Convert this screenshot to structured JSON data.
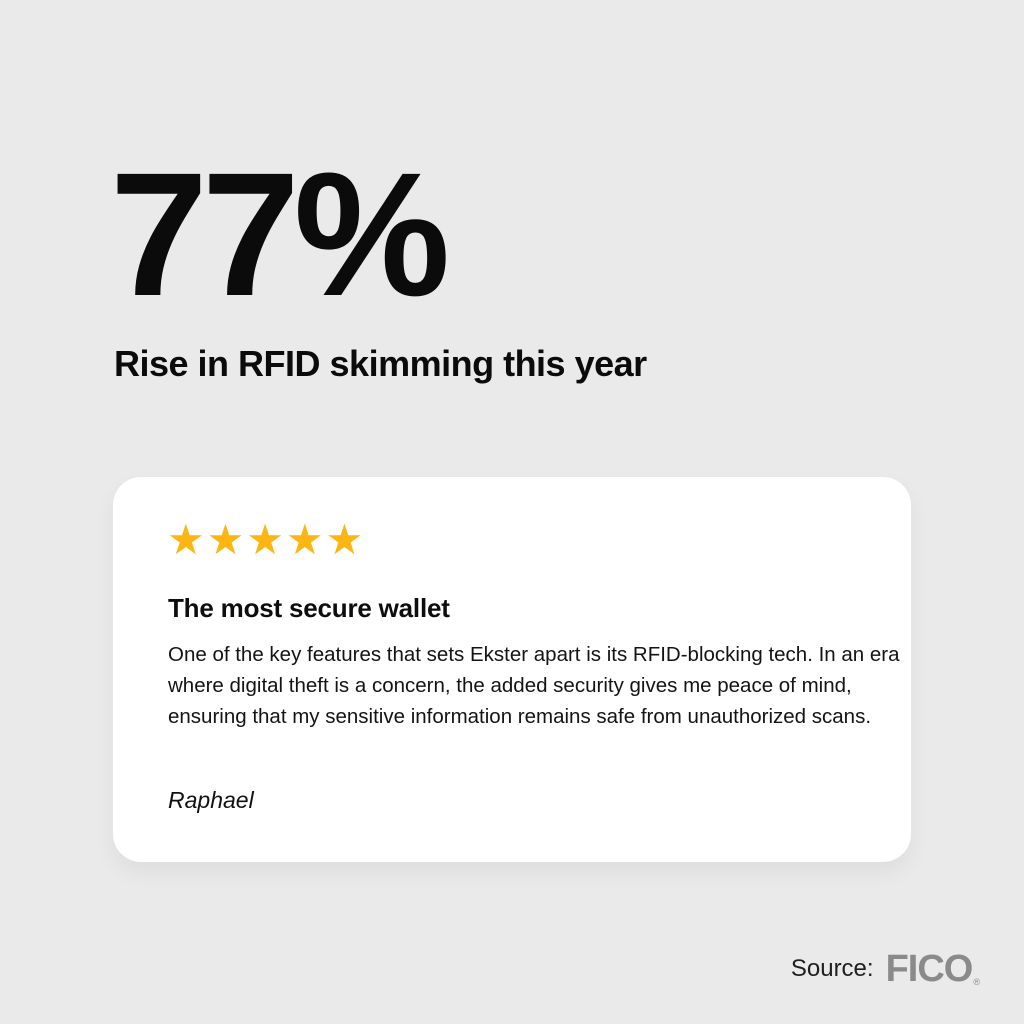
{
  "page": {
    "background_color": "#E9EAE9",
    "text_color": "#0B0B0B"
  },
  "headline": {
    "value": "77%",
    "caption": "Rise in RFID skimming this year"
  },
  "review_card": {
    "background_color": "#FFFFFF",
    "rating_value": 5,
    "stars_display": "★★★★★",
    "star_color": "#FCB614",
    "star_icon": "star-icon",
    "title": "The most secure wallet",
    "quote": "One of the key features that sets Ekster apart is its RFID-blocking tech. In an era where digital theft is a concern, the added security gives me peace of mind, ensuring that my sensitive information remains safe from unauthorized scans.",
    "author": "Raphael"
  },
  "footer": {
    "source_label": "Source:",
    "source_name": "FICO",
    "trademark_symbol": "®",
    "logo_color": "#8A8A8A"
  }
}
